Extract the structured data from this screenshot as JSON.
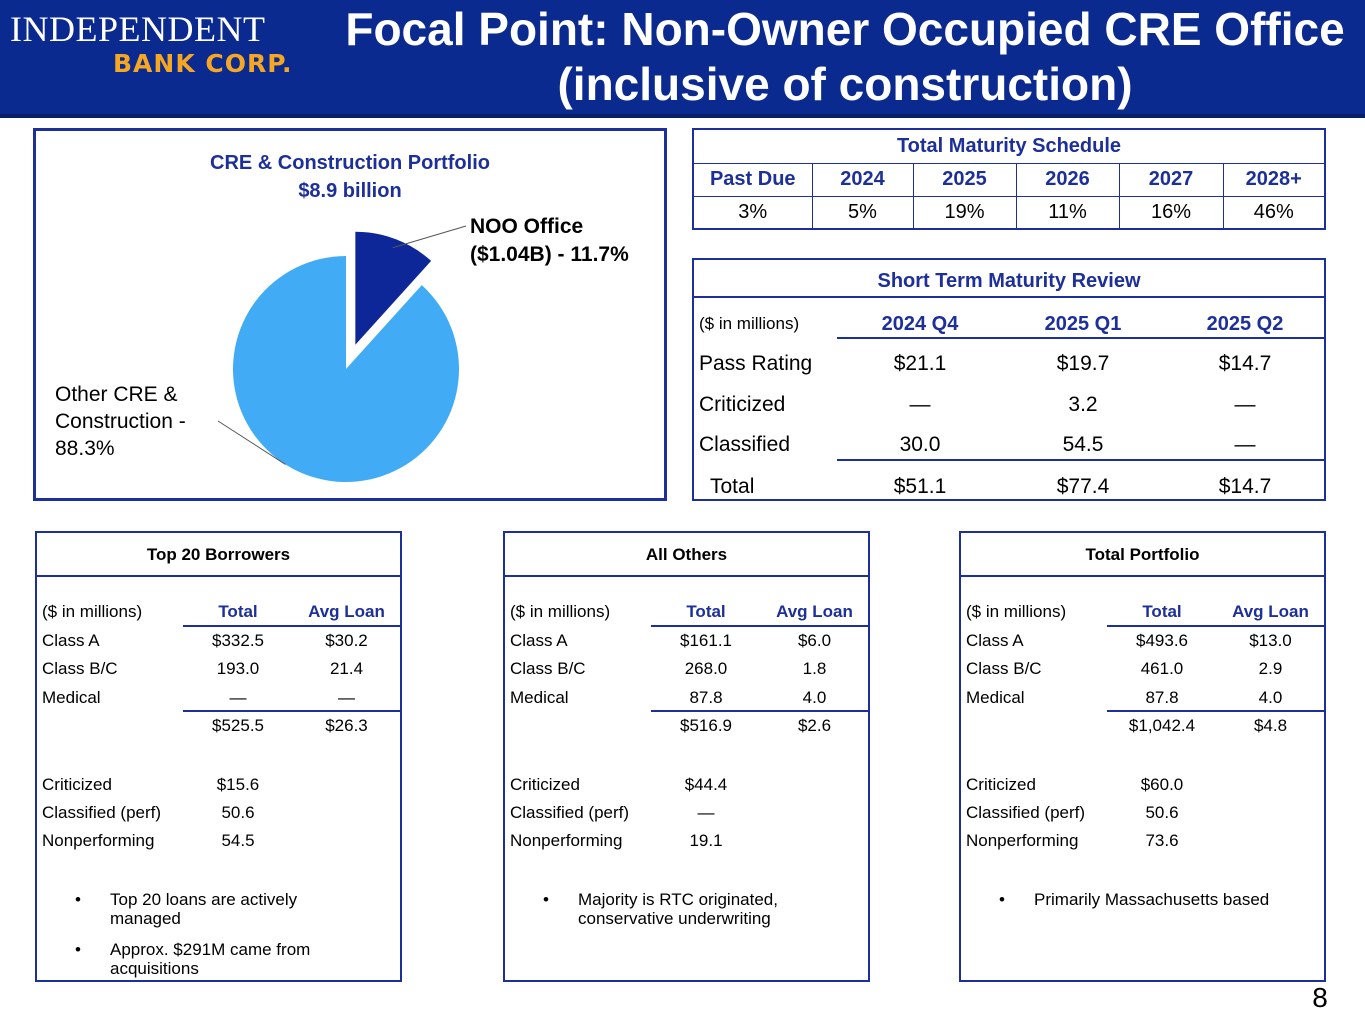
{
  "header": {
    "logo_line1": "INDEPENDENT",
    "logo_line2": "BANK CORP.",
    "title_line1": "Focal Point: Non-Owner Occupied CRE Office",
    "title_line2": "(inclusive of construction)"
  },
  "colors": {
    "brand_blue": "#0b2a8f",
    "accent_blue": "#1d2f99",
    "logo_gold": "#f5a623",
    "pie_noo": "#0d2799",
    "pie_other": "#41abf5"
  },
  "chart_data": {
    "type": "pie",
    "title": "CRE & Construction Portfolio",
    "subtitle": "$8.9 billion",
    "slices": [
      {
        "name": "NOO Office",
        "label_line1": "NOO Office",
        "label_line2": "($1.04B) - 11.7%",
        "value": 11.7,
        "exploded": true
      },
      {
        "name": "Other CRE & Construction",
        "label_line1": "Other CRE &",
        "label_line2": "Construction -",
        "label_line3": "88.3%",
        "value": 88.3,
        "exploded": false
      }
    ]
  },
  "maturity_schedule": {
    "title": "Total Maturity Schedule",
    "headers": [
      "Past Due",
      "2024",
      "2025",
      "2026",
      "2027",
      "2028+"
    ],
    "values": [
      "3%",
      "5%",
      "19%",
      "11%",
      "16%",
      "46%"
    ]
  },
  "short_term_review": {
    "title": "Short Term Maturity Review",
    "unit_label": "($ in millions)",
    "columns": [
      "2024 Q4",
      "2025 Q1",
      "2025 Q2"
    ],
    "rows": [
      {
        "label": "Pass Rating",
        "values": [
          "$21.1",
          "$19.7",
          "$14.7"
        ]
      },
      {
        "label": "Criticized",
        "values": [
          "—",
          "3.2",
          "—"
        ]
      },
      {
        "label": "Classified",
        "values": [
          "30.0",
          "54.5",
          "—"
        ]
      },
      {
        "label": "Total",
        "values": [
          "$51.1",
          "$77.4",
          "$14.7"
        ]
      }
    ]
  },
  "summaries": [
    {
      "title": "Top 20 Borrowers",
      "unit_label": "($ in millions)",
      "col_total": "Total",
      "col_avg": "Avg Loan",
      "rows": [
        {
          "label": "Class A",
          "total": "$332.5",
          "avg": "$30.2"
        },
        {
          "label": "Class B/C",
          "total": "193.0",
          "avg": "21.4"
        },
        {
          "label": "Medical",
          "total": "—",
          "avg": "—"
        }
      ],
      "sum_total": "$525.5",
      "sum_avg": "$26.3",
      "quality": [
        {
          "label": "Criticized",
          "value": "$15.6"
        },
        {
          "label": "Classified (perf)",
          "value": "50.6"
        },
        {
          "label": "Nonperforming",
          "value": "54.5"
        }
      ],
      "bullets": [
        {
          "line1": "Top 20 loans are actively",
          "line2": "managed"
        },
        {
          "line1": "Approx. $291M came from",
          "line2": "acquisitions"
        }
      ]
    },
    {
      "title": "All Others",
      "unit_label": "($ in millions)",
      "col_total": "Total",
      "col_avg": "Avg Loan",
      "rows": [
        {
          "label": "Class A",
          "total": "$161.1",
          "avg": "$6.0"
        },
        {
          "label": "Class B/C",
          "total": "268.0",
          "avg": "1.8"
        },
        {
          "label": "Medical",
          "total": "87.8",
          "avg": "4.0"
        }
      ],
      "sum_total": "$516.9",
      "sum_avg": "$2.6",
      "quality": [
        {
          "label": "Criticized",
          "value": "$44.4"
        },
        {
          "label": "Classified (perf)",
          "value": "—"
        },
        {
          "label": "Nonperforming",
          "value": "19.1"
        }
      ],
      "bullets": [
        {
          "line1": "Majority is RTC originated,",
          "line2": "conservative underwriting"
        }
      ]
    },
    {
      "title": "Total Portfolio",
      "unit_label": "($ in millions)",
      "col_total": "Total",
      "col_avg": "Avg Loan",
      "rows": [
        {
          "label": "Class A",
          "total": "$493.6",
          "avg": "$13.0"
        },
        {
          "label": "Class B/C",
          "total": "461.0",
          "avg": "2.9"
        },
        {
          "label": "Medical",
          "total": "87.8",
          "avg": "4.0"
        }
      ],
      "sum_total": "$1,042.4",
      "sum_avg": "$4.8",
      "quality": [
        {
          "label": "Criticized",
          "value": "$60.0"
        },
        {
          "label": "Classified (perf)",
          "value": "50.6"
        },
        {
          "label": "Nonperforming",
          "value": "73.6"
        }
      ],
      "bullets": [
        {
          "line1": "Primarily Massachusetts based",
          "line2": ""
        }
      ]
    }
  ],
  "bullet_char": "•",
  "page_number": "8"
}
